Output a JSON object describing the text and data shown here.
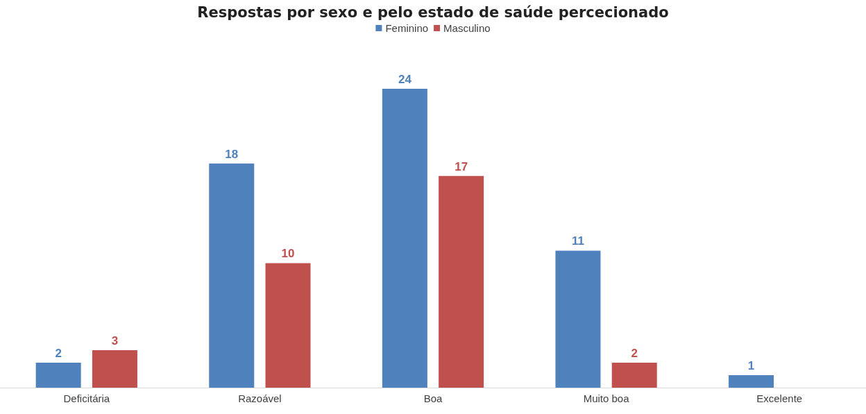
{
  "chart_data": {
    "type": "bar",
    "title": "Respostas por sexo e pelo estado de saúde percecionado",
    "categories": [
      "Deficitária",
      "Razoável",
      "Boa",
      "Muito boa",
      "Excelente"
    ],
    "series": [
      {
        "name": "Feminino",
        "color": "#4f81bd",
        "values": [
          2,
          18,
          24,
          11,
          1
        ]
      },
      {
        "name": "Masculino",
        "color": "#c0504d",
        "values": [
          3,
          10,
          17,
          2,
          null
        ]
      }
    ],
    "data_labels": true,
    "legend": "top",
    "grid": false
  }
}
